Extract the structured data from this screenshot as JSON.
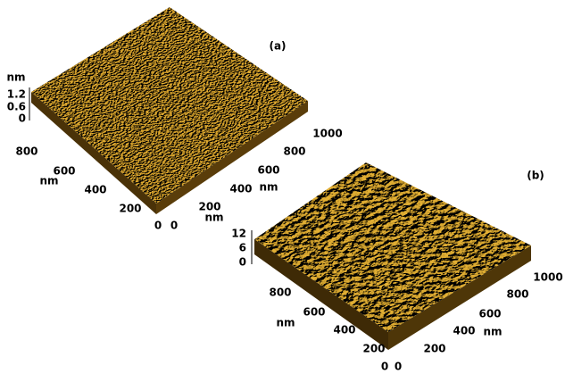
{
  "panels": [
    {
      "label": "(a)",
      "z_unit": "nm",
      "z_ticks": [
        "1.2",
        "0.6",
        "0"
      ],
      "y_ticks": [
        "800",
        "600",
        "400",
        "200",
        "0"
      ],
      "y_unit": "nm",
      "x_ticks": [
        "0",
        "200",
        "400",
        "600",
        "800",
        "1000"
      ],
      "x_unit": "nm"
    },
    {
      "label": "(b)",
      "z_unit": "nm",
      "z_ticks": [
        "12",
        "6",
        "0"
      ],
      "y_ticks": [
        "800",
        "600",
        "400",
        "200",
        "0"
      ],
      "y_unit": "nm",
      "x_ticks": [
        "0",
        "200",
        "400",
        "600",
        "800",
        "1000"
      ],
      "x_unit": "nm"
    }
  ]
}
